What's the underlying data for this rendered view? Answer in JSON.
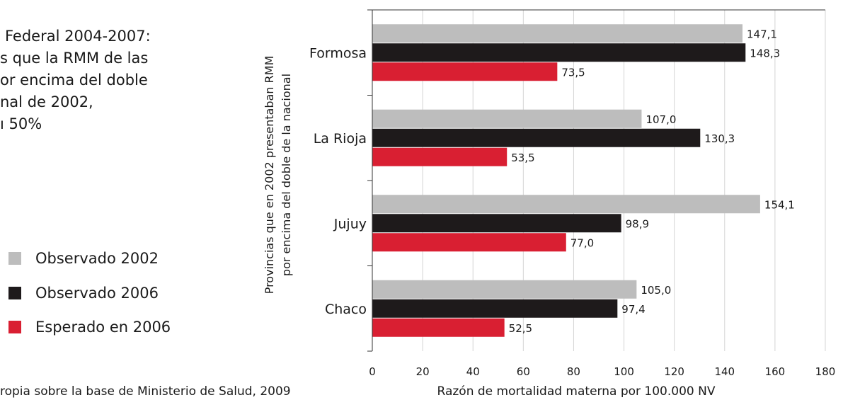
{
  "title_lines": [
    "Federal 2004-2007:",
    "s que la RMM de las",
    "or encima del doble",
    "nal de 2002,",
    "ı 50%"
  ],
  "source_text": "ropia sobre la base de Ministerio de Salud, 2009",
  "colors": {
    "observado_2002": "#bdbdbd",
    "observado_2006": "#1e1a1b",
    "esperado_2006": "#d91f32",
    "grid": "#d4d4d4",
    "axis": "#333333"
  },
  "chart_data": {
    "type": "bar",
    "orientation": "horizontal",
    "categories": [
      "Formosa",
      "La Rioja",
      "Jujuy",
      "Chaco"
    ],
    "series": [
      {
        "name": "Observado 2002",
        "color": "#bdbdbd",
        "values": [
          147.1,
          107.0,
          154.1,
          105.0
        ],
        "labels": [
          "147,1",
          "107,0",
          "154,1",
          "105,0"
        ]
      },
      {
        "name": "Observado 2006",
        "color": "#1e1a1b",
        "values": [
          148.3,
          130.3,
          98.9,
          97.4
        ],
        "labels": [
          "148,3",
          "130,3",
          "98,9",
          "97,4"
        ]
      },
      {
        "name": "Esperado en 2006",
        "color": "#d91f32",
        "values": [
          73.5,
          53.5,
          77.0,
          52.5
        ],
        "labels": [
          "73,5",
          "53,5",
          "77,0",
          "52,5"
        ]
      }
    ],
    "xlim": [
      0,
      180
    ],
    "x_ticks": [
      0,
      20,
      40,
      60,
      80,
      100,
      120,
      140,
      160,
      180
    ],
    "x_tick_labels": [
      "0",
      "20",
      "40",
      "60",
      "80",
      "100",
      "120",
      "140",
      "160",
      "180"
    ],
    "xlabel": "Razón de mortalidad materna por 100.000 NV",
    "ylabel_lines": [
      "Provincias que en 2002 presentaban RMM",
      "por encima del doble de la nacional"
    ],
    "grid": "vertical",
    "legend_position": "left"
  }
}
